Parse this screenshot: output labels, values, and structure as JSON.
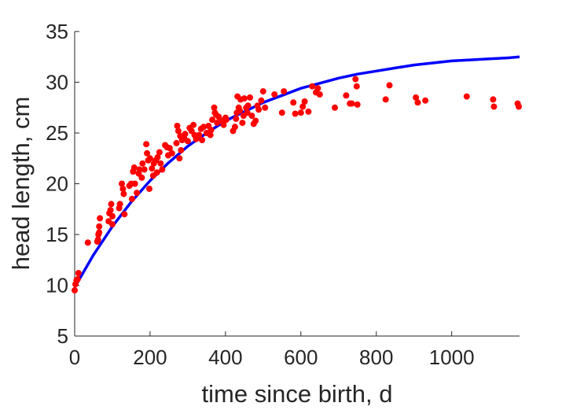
{
  "chart_data": {
    "type": "scatter",
    "title": "",
    "xlabel": "time since birth, d",
    "ylabel": "head length, cm",
    "xlim": [
      0,
      1180
    ],
    "ylim": [
      5,
      35
    ],
    "xticks": [
      0,
      200,
      400,
      600,
      800,
      1000
    ],
    "yticks": [
      5,
      10,
      15,
      20,
      25,
      30,
      35
    ],
    "grid": false,
    "legend": "none",
    "colors": {
      "points": "#ff0000",
      "curve": "#0000ff",
      "axis": "#262626"
    },
    "curve": {
      "style": "line",
      "x": [
        0,
        50,
        100,
        150,
        200,
        250,
        300,
        350,
        400,
        450,
        500,
        550,
        600,
        650,
        700,
        750,
        800,
        850,
        900,
        950,
        1000,
        1050,
        1100,
        1150,
        1180
      ],
      "y": [
        9.8,
        13.0,
        15.8,
        18.2,
        20.3,
        22.1,
        23.7,
        25.0,
        26.2,
        27.1,
        28.0,
        28.7,
        29.4,
        29.9,
        30.4,
        30.8,
        31.1,
        31.4,
        31.7,
        31.9,
        32.1,
        32.2,
        32.3,
        32.4,
        32.5
      ]
    },
    "points": {
      "style": "markers",
      "x": [
        0,
        2,
        5,
        8,
        10,
        35,
        60,
        62,
        63,
        65,
        65,
        67,
        90,
        92,
        95,
        97,
        100,
        100,
        118,
        120,
        125,
        128,
        130,
        132,
        145,
        150,
        152,
        155,
        158,
        160,
        165,
        170,
        172,
        178,
        180,
        185,
        190,
        192,
        195,
        198,
        200,
        205,
        208,
        210,
        215,
        218,
        220,
        225,
        228,
        232,
        240,
        245,
        248,
        252,
        258,
        270,
        272,
        275,
        278,
        280,
        282,
        285,
        290,
        293,
        300,
        305,
        310,
        315,
        318,
        322,
        330,
        335,
        338,
        342,
        350,
        355,
        360,
        362,
        365,
        370,
        372,
        375,
        378,
        382,
        390,
        395,
        400,
        402,
        420,
        425,
        428,
        430,
        432,
        435,
        438,
        440,
        445,
        448,
        450,
        455,
        458,
        460,
        465,
        470,
        475,
        480,
        485,
        488,
        495,
        500,
        505,
        530,
        550,
        555,
        580,
        585,
        600,
        605,
        610,
        620,
        630,
        640,
        645,
        650,
        690,
        720,
        730,
        735,
        745,
        748,
        750,
        825,
        835,
        905,
        910,
        930,
        1040,
        1110,
        1112,
        1175,
        1178
      ],
      "y": [
        9.5,
        10.1,
        10.5,
        10.6,
        11.2,
        14.2,
        14.3,
        14.5,
        15.0,
        15.2,
        15.8,
        16.6,
        16.3,
        17.1,
        17.4,
        18.0,
        16.0,
        16.8,
        17.6,
        18.0,
        20.0,
        19.5,
        19.0,
        17.0,
        19.8,
        20.0,
        18.5,
        21.2,
        21.6,
        20.0,
        19.1,
        21.0,
        21.4,
        20.6,
        22.0,
        21.4,
        23.9,
        23.0,
        22.3,
        19.5,
        22.5,
        21.5,
        20.8,
        22.0,
        22.3,
        21.1,
        22.6,
        23.1,
        22.0,
        21.4,
        23.8,
        23.6,
        22.8,
        23.5,
        23.0,
        24.0,
        25.7,
        25.2,
        22.5,
        24.7,
        23.3,
        24.3,
        24.5,
        24.9,
        24.2,
        25.5,
        25.2,
        25.8,
        24.8,
        24.4,
        24.8,
        25.4,
        24.3,
        25.6,
        25.0,
        25.7,
        24.8,
        25.3,
        26.3,
        27.5,
        27.0,
        26.8,
        26.0,
        26.6,
        26.2,
        25.8,
        26.5,
        26.3,
        25.2,
        25.6,
        26.4,
        27.0,
        28.6,
        27.5,
        27.2,
        28.3,
        26.0,
        26.7,
        28.4,
        27.5,
        27.0,
        27.7,
        28.5,
        26.7,
        25.9,
        26.2,
        27.7,
        27.3,
        28.2,
        29.1,
        27.5,
        28.8,
        27.0,
        29.1,
        28.0,
        26.9,
        27.0,
        27.6,
        28.1,
        27.1,
        29.6,
        29.0,
        29.4,
        28.8,
        27.5,
        28.7,
        27.9,
        27.9,
        30.3,
        29.6,
        27.8,
        28.3,
        29.7,
        28.5,
        28.0,
        28.2,
        28.6,
        28.3,
        27.6,
        27.9,
        27.6
      ]
    }
  }
}
